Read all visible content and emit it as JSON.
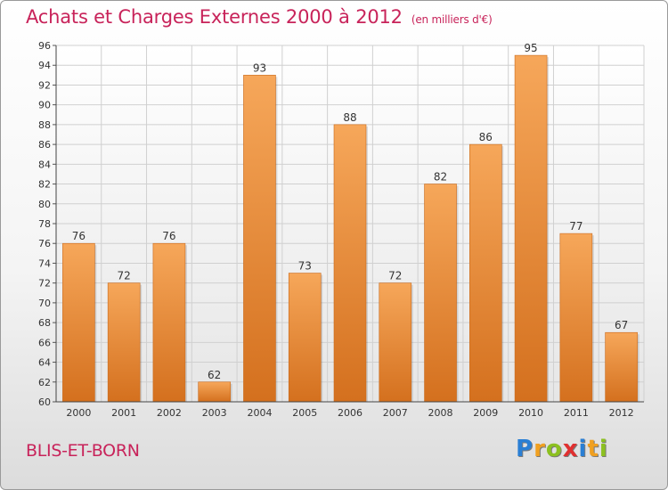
{
  "header": {
    "title": "Achats et Charges Externes 2000 à 2012",
    "subtitle": "(en milliers d'€)"
  },
  "footer": {
    "commune": "BLIS-ET-BORN",
    "logo_letters": [
      {
        "ch": "P",
        "color": "#2a7fd4"
      },
      {
        "ch": "r",
        "color": "#f0a020"
      },
      {
        "ch": "o",
        "color": "#8cc020"
      },
      {
        "ch": "x",
        "color": "#e03030"
      },
      {
        "ch": "i",
        "color": "#2a7fd4"
      },
      {
        "ch": "t",
        "color": "#f0a020"
      },
      {
        "ch": "i",
        "color": "#8cc020"
      }
    ]
  },
  "chart_data": {
    "type": "bar",
    "categories": [
      "2000",
      "2001",
      "2002",
      "2003",
      "2004",
      "2005",
      "2006",
      "2007",
      "2008",
      "2009",
      "2010",
      "2011",
      "2012"
    ],
    "values": [
      76,
      72,
      76,
      62,
      93,
      73,
      88,
      72,
      82,
      86,
      95,
      77,
      67
    ],
    "data_labels": [
      "76",
      "72",
      "76",
      "62",
      "93",
      "73",
      "88",
      "72",
      "82",
      "86",
      "95",
      "77",
      "67"
    ],
    "title": "Achats et Charges Externes 2000 à 2012",
    "subtitle": "(en milliers d'€)",
    "xlabel": "",
    "ylabel": "",
    "ylim": [
      60,
      96
    ],
    "yticks": [
      "60",
      "62",
      "64",
      "66",
      "68",
      "70",
      "72",
      "74",
      "76",
      "78",
      "80",
      "82",
      "84",
      "86",
      "88",
      "90",
      "92",
      "94",
      "96"
    ],
    "grid": true,
    "bar_color_top": "#f6a75a",
    "bar_color_bottom": "#d4701e"
  }
}
